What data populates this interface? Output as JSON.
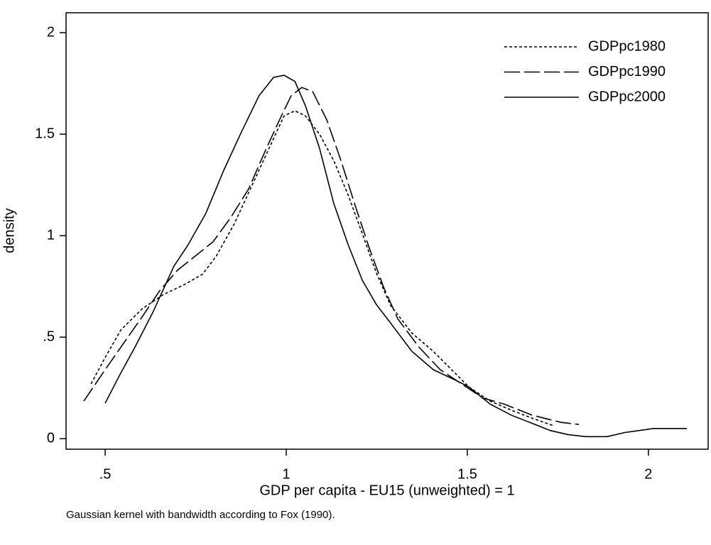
{
  "chart_data": {
    "type": "line",
    "ylabel": "density",
    "xlabel": "GDP per capita -  EU15 (unweighted) = 1",
    "note": "Gaussian kernel with bandwidth according to Fox (1990).",
    "xlim": [
      0.392,
      2.165
    ],
    "ylim": [
      -0.052,
      2.098
    ],
    "xticks": [
      {
        "value": 0.5,
        "label": ".5"
      },
      1,
      1.5,
      2
    ],
    "yticks": [
      0,
      {
        "value": 0.5,
        "label": ".5"
      },
      1,
      1.5,
      2
    ],
    "legend": "top-right",
    "series": [
      {
        "name": "GDPpc1980",
        "color": "#000000",
        "dash": "dotted",
        "x": [
          0.461,
          0.5,
          0.543,
          0.602,
          0.661,
          0.72,
          0.769,
          0.807,
          0.857,
          0.906,
          0.955,
          0.994,
          1.024,
          1.053,
          1.092,
          1.131,
          1.171,
          1.21,
          1.249,
          1.288,
          1.347,
          1.406,
          1.465,
          1.504,
          1.563,
          1.622,
          1.68,
          1.739
        ],
        "values": [
          0.27,
          0.4,
          0.535,
          0.64,
          0.71,
          0.76,
          0.81,
          0.9,
          1.06,
          1.25,
          1.44,
          1.59,
          1.615,
          1.59,
          1.5,
          1.37,
          1.2,
          1.01,
          0.815,
          0.657,
          0.52,
          0.43,
          0.325,
          0.255,
          0.185,
          0.14,
          0.1,
          0.063
        ]
      },
      {
        "name": "GDPpc1990",
        "color": "#000000",
        "dash": "dashed",
        "x": [
          0.441,
          0.5,
          0.543,
          0.602,
          0.651,
          0.7,
          0.749,
          0.798,
          0.847,
          0.896,
          0.945,
          0.984,
          1.014,
          1.043,
          1.073,
          1.112,
          1.151,
          1.19,
          1.229,
          1.269,
          1.308,
          1.367,
          1.425,
          1.484,
          1.543,
          1.602,
          1.68,
          1.759,
          1.808
        ],
        "values": [
          0.185,
          0.34,
          0.45,
          0.6,
          0.73,
          0.83,
          0.9,
          0.97,
          1.09,
          1.23,
          1.43,
          1.58,
          1.69,
          1.73,
          1.71,
          1.57,
          1.37,
          1.15,
          0.94,
          0.745,
          0.59,
          0.45,
          0.34,
          0.27,
          0.2,
          0.17,
          0.115,
          0.08,
          0.07
        ]
      },
      {
        "name": "GDPpc2000",
        "color": "#000000",
        "dash": "solid",
        "x": [
          0.5,
          0.539,
          0.582,
          0.631,
          0.69,
          0.729,
          0.778,
          0.827,
          0.876,
          0.925,
          0.965,
          0.994,
          1.024,
          1.053,
          1.092,
          1.131,
          1.171,
          1.21,
          1.249,
          1.288,
          1.347,
          1.406,
          1.465,
          1.504,
          1.563,
          1.622,
          1.68,
          1.729,
          1.778,
          1.827,
          1.886,
          1.935,
          1.994,
          2.014,
          2.106
        ],
        "values": [
          0.175,
          0.31,
          0.45,
          0.62,
          0.85,
          0.955,
          1.11,
          1.32,
          1.51,
          1.69,
          1.78,
          1.79,
          1.76,
          1.64,
          1.43,
          1.16,
          0.955,
          0.78,
          0.66,
          0.57,
          0.43,
          0.34,
          0.29,
          0.255,
          0.17,
          0.115,
          0.075,
          0.04,
          0.02,
          0.01,
          0.01,
          0.03,
          0.045,
          0.05,
          0.05
        ]
      }
    ]
  }
}
